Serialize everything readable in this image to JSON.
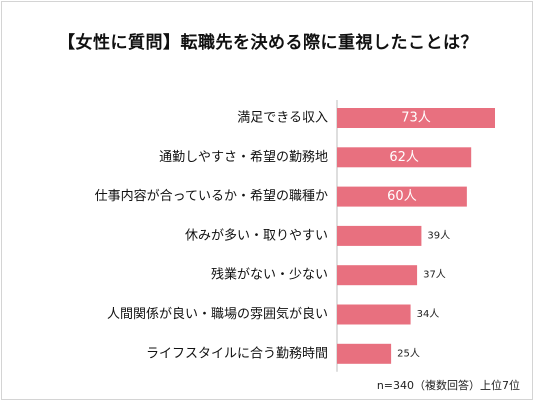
{
  "chart_data": {
    "type": "bar",
    "orientation": "horizontal",
    "title": "【女性に質問】転職先を決める際に重視したことは？",
    "categories": [
      "満足できる収入",
      "通勤しやすさ・希望の勤務地",
      "仕事内容が合っているか・希望の職種か",
      "休みが多い・取りやすい",
      "残業がない・少ない",
      "人間関係が良い・職場の雰囲気が良い",
      "ライフスタイルに合う勤務時間"
    ],
    "values": [
      73,
      62,
      60,
      39,
      37,
      34,
      25
    ],
    "value_labels": [
      "73人",
      "62人",
      "60人",
      "39人",
      "37人",
      "34人",
      "25人"
    ],
    "bar_color": "#e8707f",
    "grid": false,
    "legend": "none",
    "note": "n=340（複数回答）上位7位"
  }
}
